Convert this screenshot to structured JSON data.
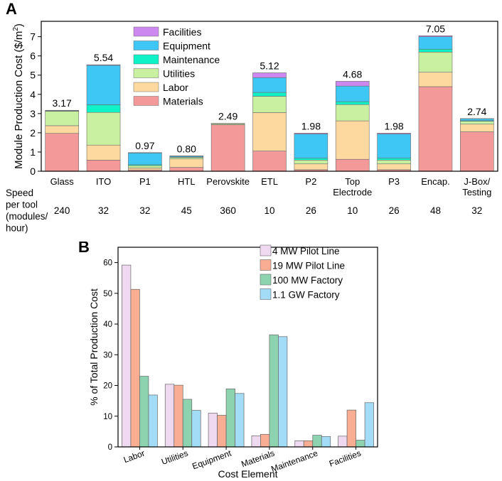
{
  "chart_data": [
    {
      "panel_label": "A",
      "type": "bar",
      "stacked": true,
      "ylabel": "Module Production Cost ($/m²)",
      "ylabel_main": "Module Production Cost ($/m",
      "ylabel_sup": "2",
      "ylabel_close": ")",
      "ylim": [
        0,
        7.8
      ],
      "yticks": [
        "0",
        "1",
        "2",
        "3",
        "4",
        "5",
        "6",
        "7"
      ],
      "legend_position": "top-center",
      "categories": [
        {
          "label": "Glass",
          "highlight": false
        },
        {
          "label": "ITO",
          "highlight": true
        },
        {
          "label": "P1",
          "highlight": false
        },
        {
          "label": "HTL",
          "highlight": false
        },
        {
          "label": "Perovskite",
          "highlight": false
        },
        {
          "label": "ETL",
          "highlight": true
        },
        {
          "label": "P2",
          "highlight": false
        },
        {
          "label": "Top|Electrode",
          "highlight": true
        },
        {
          "label": "P3",
          "highlight": false
        },
        {
          "label": "Encap.",
          "highlight": true
        },
        {
          "label": "J-Box/|Testing",
          "highlight": false
        }
      ],
      "totals": [
        "3.17",
        "5.54",
        "0.97",
        "0.80",
        "2.49",
        "5.12",
        "1.98",
        "4.68",
        "1.98",
        "7.05",
        "2.74"
      ],
      "series": [
        {
          "name": "Materials",
          "color": "#f4999a",
          "values": [
            1.97,
            0.58,
            0.07,
            0.2,
            2.42,
            1.05,
            0.08,
            0.62,
            0.08,
            4.4,
            2.05
          ]
        },
        {
          "name": "Labor",
          "color": "#fdd9a0",
          "values": [
            0.4,
            0.78,
            0.1,
            0.44,
            0.0,
            2.0,
            0.3,
            2.0,
            0.3,
            0.75,
            0.4
          ]
        },
        {
          "name": "Utilities",
          "color": "#c8f0a0",
          "values": [
            0.75,
            1.7,
            0.12,
            0.08,
            0.05,
            0.85,
            0.2,
            0.85,
            0.2,
            1.05,
            0.15
          ]
        },
        {
          "name": "Maintenance",
          "color": "#0ff2c8",
          "values": [
            0.01,
            0.4,
            0.05,
            0.02,
            0.0,
            0.2,
            0.1,
            0.15,
            0.1,
            0.15,
            0.03
          ]
        },
        {
          "name": "Equipment",
          "color": "#3ec7f4",
          "values": [
            0.03,
            2.05,
            0.61,
            0.05,
            0.01,
            0.77,
            1.26,
            0.81,
            1.26,
            0.65,
            0.1
          ]
        },
        {
          "name": "Facilities",
          "color": "#cc88ee",
          "values": [
            0.01,
            0.03,
            0.02,
            0.01,
            0.01,
            0.25,
            0.04,
            0.25,
            0.04,
            0.05,
            0.01
          ]
        }
      ],
      "speed_header": "Speed|per tool|(modules/|hour)",
      "speeds": [
        "240",
        "32",
        "32",
        "45",
        "360",
        "10",
        "26",
        "10",
        "26",
        "48",
        "32"
      ],
      "highlight_color": "#e8141b"
    },
    {
      "panel_label": "B",
      "type": "bar",
      "stacked": false,
      "xlabel": "Cost Element",
      "ylabel": "% of Total Production Cost",
      "ylim": [
        0,
        65
      ],
      "yticks": [
        "0",
        "10",
        "20",
        "30",
        "40",
        "50",
        "60"
      ],
      "legend_position": "top-right",
      "categories": [
        "Labor",
        "Utilities",
        "Equipment",
        "Materials",
        "Maintenance",
        "Facilities"
      ],
      "series": [
        {
          "name": "4 MW Pilot Line",
          "color": "#efd9f1",
          "values": [
            59.2,
            20.4,
            11.0,
            3.6,
            2.0,
            3.5
          ]
        },
        {
          "name": "19 MW Pilot Line",
          "color": "#f9ad92",
          "values": [
            51.3,
            20.1,
            10.3,
            4.1,
            2.0,
            12.0
          ]
        },
        {
          "name": "100 MW Factory",
          "color": "#8dd3b0",
          "values": [
            23.0,
            15.5,
            18.9,
            36.5,
            3.8,
            2.2
          ]
        },
        {
          "name": "1.1 GW Factory",
          "color": "#a2dcf7",
          "values": [
            16.9,
            11.9,
            17.4,
            35.9,
            3.4,
            14.4
          ]
        }
      ]
    }
  ]
}
